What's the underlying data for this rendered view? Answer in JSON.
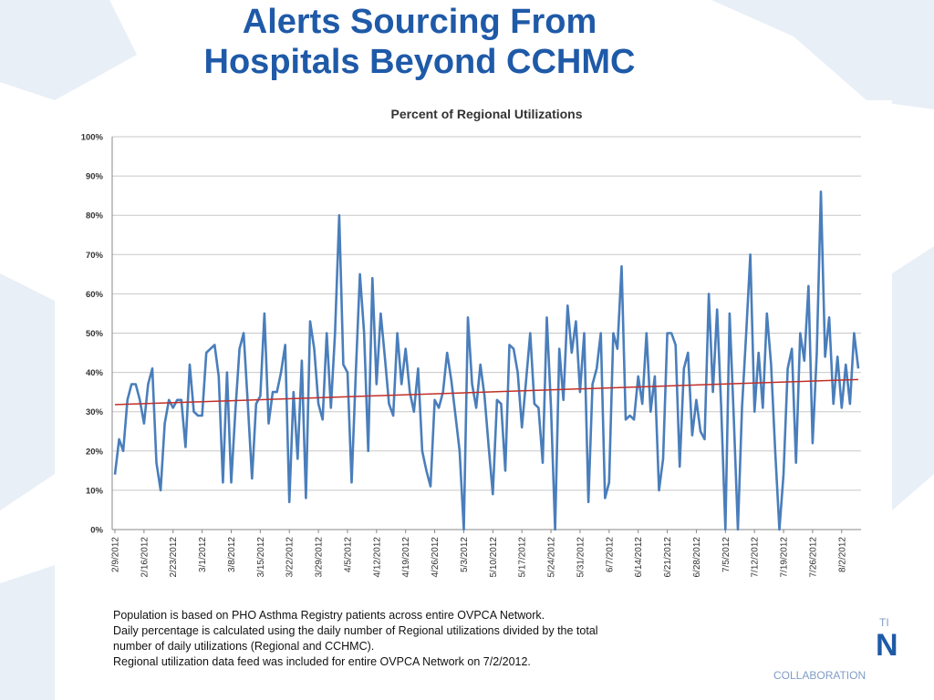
{
  "slide": {
    "title_line1": "Alerts Sourcing From",
    "title_line2": "Hospitals Beyond CCHMC",
    "accent_color": "#1f5aa8",
    "background_shape_color": "#e6eef6"
  },
  "chart_data": {
    "type": "line",
    "title": "Percent of Regional Utilizations",
    "xlabel": "",
    "ylabel": "",
    "ylim": [
      0,
      100
    ],
    "y_ticks": [
      "0%",
      "10%",
      "20%",
      "30%",
      "40%",
      "50%",
      "60%",
      "70%",
      "80%",
      "90%",
      "100%"
    ],
    "x_tick_labels": [
      "2/9/2012",
      "2/16/2012",
      "2/23/2012",
      "3/1/2012",
      "3/8/2012",
      "3/15/2012",
      "3/22/2012",
      "3/29/2012",
      "4/5/2012",
      "4/12/2012",
      "4/19/2012",
      "4/26/2012",
      "5/3/2012",
      "5/10/2012",
      "5/17/2012",
      "5/24/2012",
      "5/31/2012",
      "6/7/2012",
      "6/14/2012",
      "6/21/2012",
      "6/28/2012",
      "7/5/2012",
      "7/12/2012",
      "7/19/2012",
      "7/26/2012",
      "8/2/2012"
    ],
    "grid": true,
    "series": [
      {
        "color": "#4a7ebb",
        "values": [
          14,
          23,
          20,
          33,
          37,
          37,
          33,
          27,
          37,
          41,
          17,
          10,
          27,
          33,
          31,
          33,
          33,
          21,
          42,
          30,
          29,
          29,
          45,
          46,
          47,
          39,
          12,
          40,
          12,
          30,
          46,
          50,
          32,
          13,
          32,
          34,
          55,
          27,
          35,
          35,
          40,
          47,
          7,
          35,
          18,
          43,
          8,
          53,
          46,
          32,
          28,
          50,
          31,
          50,
          80,
          42,
          40,
          12,
          40,
          65,
          50,
          20,
          64,
          37,
          55,
          44,
          32,
          29,
          50,
          37,
          46,
          35,
          30,
          41,
          20,
          15,
          11,
          33,
          31,
          35,
          45,
          38,
          29,
          20,
          0,
          54,
          37,
          31,
          42,
          34,
          21,
          9,
          33,
          32,
          15,
          47,
          46,
          40,
          26,
          38,
          50,
          32,
          31,
          17,
          54,
          31,
          0,
          46,
          33,
          57,
          45,
          53,
          35,
          50,
          7,
          37,
          41,
          50,
          8,
          12,
          50,
          46,
          67,
          28,
          29,
          28,
          39,
          32,
          50,
          30,
          39,
          10,
          18,
          50,
          50,
          47,
          16,
          41,
          45,
          24,
          33,
          25,
          23,
          60,
          35,
          56,
          31,
          0,
          55,
          29,
          0,
          31,
          50,
          70,
          30,
          45,
          31,
          55,
          42,
          20,
          0,
          14,
          41,
          46,
          17,
          50,
          43,
          62,
          22,
          45,
          86,
          44,
          54,
          32,
          44,
          31,
          42,
          32,
          50,
          41
        ]
      },
      {
        "color": "#c0302a",
        "values": [
          31.8,
          38.2
        ]
      }
    ]
  },
  "notes": [
    "Population is based on PHO Asthma Registry patients across entire OVPCA Network.",
    "Daily percentage is calculated using the daily number of Regional utilizations divided by the total",
    "number of daily utilizations (Regional and CCHMC).",
    "Regional utilization data feed was included for entire OVPCA Network on 7/2/2012."
  ],
  "logo_fragments": {
    "top_text": "TI",
    "big_letter": "N",
    "bottom_text": "COLLABORATION"
  }
}
